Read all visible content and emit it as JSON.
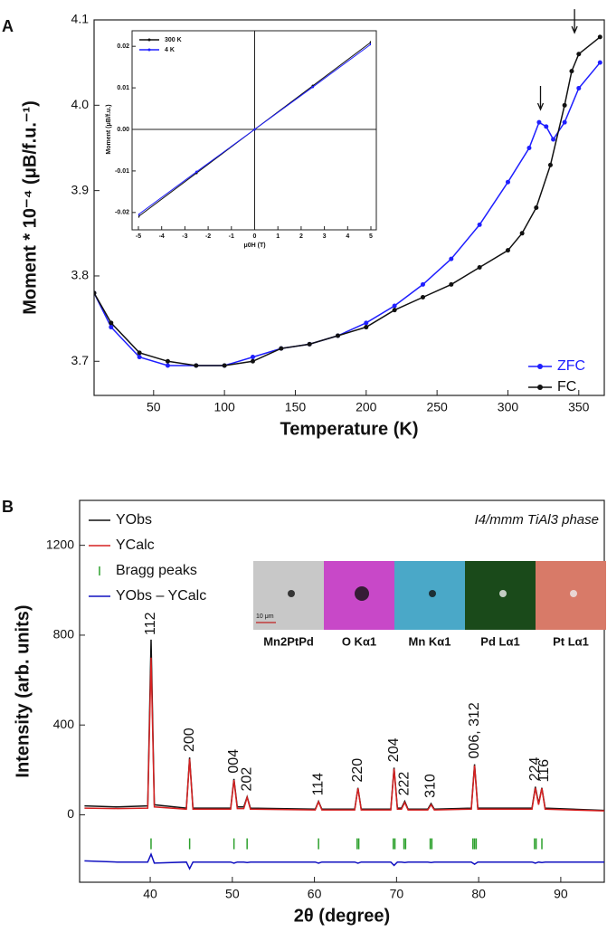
{
  "chart_data": [
    {
      "type": "line",
      "label": "A",
      "xlabel": "Temperature (K)",
      "ylabel": "Moment * 10⁻⁴ (μB/f.u.⁻¹)",
      "xlim": [
        8,
        368
      ],
      "ylim": [
        3.66,
        4.1
      ],
      "xticks": [
        50,
        100,
        150,
        200,
        250,
        300,
        350
      ],
      "yticks": [
        3.7,
        3.8,
        3.9,
        {
          "value": 4,
          "label": "4.0"
        },
        4.1
      ],
      "legend": "lower right",
      "arrows": [
        {
          "x": 323,
          "y": 3.995
        },
        {
          "x": 347,
          "y": 4.085
        }
      ],
      "series": [
        {
          "name": "ZFC",
          "color": "#1f1fff",
          "marker": true,
          "x": [
            8,
            20,
            40,
            60,
            80,
            100,
            120,
            140,
            160,
            180,
            200,
            220,
            240,
            260,
            280,
            300,
            315,
            322,
            327,
            332,
            340,
            350,
            365
          ],
          "values": [
            3.78,
            3.74,
            3.705,
            3.695,
            3.695,
            3.695,
            3.705,
            3.715,
            3.72,
            3.73,
            3.745,
            3.765,
            3.79,
            3.82,
            3.86,
            3.91,
            3.95,
            3.98,
            3.975,
            3.96,
            3.98,
            4.02,
            4.05
          ]
        },
        {
          "name": "FC",
          "color": "#111111",
          "marker": true,
          "x": [
            8,
            20,
            40,
            60,
            80,
            100,
            120,
            140,
            160,
            180,
            200,
            220,
            240,
            260,
            280,
            300,
            310,
            320,
            330,
            340,
            345,
            350,
            365
          ],
          "values": [
            3.78,
            3.745,
            3.71,
            3.7,
            3.695,
            3.695,
            3.7,
            3.715,
            3.72,
            3.73,
            3.74,
            3.76,
            3.775,
            3.79,
            3.81,
            3.83,
            3.85,
            3.88,
            3.93,
            4.0,
            4.04,
            4.06,
            4.08
          ]
        }
      ]
    },
    {
      "type": "line",
      "xlabel": "μ0H (T)",
      "ylabel": "Moment (μB/f.u.)",
      "xlim": [
        -5,
        5
      ],
      "ylim": [
        -0.022,
        0.022
      ],
      "xticks": [
        -5,
        -4,
        -3,
        -2,
        -1,
        0,
        1,
        2,
        3,
        4,
        5
      ],
      "yticks": [
        -0.02,
        -0.01,
        {
          "value": 0,
          "label": "0.00"
        },
        0.01,
        0.02
      ],
      "zero_lines": true,
      "legend": "upper left",
      "x": [
        -5,
        -2.5,
        0,
        2.5,
        5
      ],
      "series": [
        {
          "name": "300 K",
          "color": "#111111",
          "marker": true,
          "values": [
            -0.021,
            -0.0105,
            0,
            0.0105,
            0.021
          ]
        },
        {
          "name": "4 K",
          "color": "#1f1fff",
          "marker": true,
          "values": [
            -0.0205,
            -0.0102,
            0,
            0.0102,
            0.0205
          ]
        }
      ]
    },
    {
      "type": "line",
      "label": "B",
      "xlabel": "2θ (degree)",
      "ylabel": "Intensity (arb. units)",
      "xlim": [
        31.4,
        95.3
      ],
      "ylim": [
        -300,
        1400
      ],
      "xticks": [
        40,
        50,
        60,
        70,
        80,
        90
      ],
      "yticks": [
        0,
        400,
        800,
        1200
      ],
      "legend": "upper left",
      "x": [
        32,
        36,
        39.7,
        40.1,
        40.5,
        44.4,
        44.8,
        45.2,
        49.8,
        50.2,
        50.6,
        51.4,
        51.8,
        52.2,
        60.1,
        60.5,
        60.9,
        64.9,
        65.3,
        65.7,
        69.3,
        69.7,
        70.1,
        70.6,
        71.0,
        71.4,
        73.8,
        74.2,
        74.6,
        79.1,
        79.5,
        79.9,
        86.5,
        86.9,
        87.3,
        87.7,
        88.1,
        95.3
      ],
      "series": [
        {
          "name": "YObs",
          "color": "#111111",
          "values": [
            40,
            35,
            40,
            780,
            45,
            30,
            255,
            30,
            30,
            160,
            35,
            35,
            80,
            30,
            25,
            60,
            25,
            25,
            120,
            25,
            25,
            210,
            30,
            30,
            60,
            25,
            25,
            50,
            25,
            30,
            225,
            30,
            30,
            125,
            50,
            120,
            30,
            20
          ]
        },
        {
          "name": "YCalc",
          "color": "#d62020",
          "values": [
            30,
            28,
            30,
            700,
            35,
            25,
            250,
            25,
            25,
            155,
            28,
            28,
            78,
            25,
            22,
            58,
            22,
            22,
            118,
            22,
            22,
            205,
            25,
            25,
            55,
            22,
            22,
            45,
            22,
            25,
            220,
            25,
            25,
            120,
            45,
            118,
            25,
            18
          ]
        },
        {
          "name": "Bragg peaks",
          "color": "#2ca02c",
          "style": "ticks",
          "x": [
            40.1,
            44.8,
            50.2,
            51.8,
            60.5,
            65.2,
            65.4,
            69.6,
            69.8,
            70.9,
            71.1,
            74.1,
            74.3,
            79.3,
            79.5,
            79.7,
            86.8,
            87.0,
            87.7
          ]
        },
        {
          "name": "YObs – YCalc",
          "color": "#1010c0",
          "values": [
            -205,
            -210,
            -210,
            -175,
            -215,
            -210,
            -240,
            -210,
            -210,
            -215,
            -210,
            -210,
            -212,
            -210,
            -210,
            -215,
            -210,
            -210,
            -215,
            -210,
            -210,
            -225,
            -210,
            -210,
            -212,
            -210,
            -210,
            -212,
            -210,
            -210,
            -220,
            -210,
            -210,
            -215,
            -210,
            -212,
            -210,
            -210
          ]
        }
      ],
      "annotations": [
        {
          "text": "112",
          "x": 40.1,
          "y": 800
        },
        {
          "text": "200",
          "x": 44.8,
          "y": 280
        },
        {
          "text": "004",
          "x": 50.2,
          "y": 185
        },
        {
          "text": "202",
          "x": 51.8,
          "y": 105
        },
        {
          "text": "114",
          "x": 60.5,
          "y": 85
        },
        {
          "text": "220",
          "x": 65.3,
          "y": 145
        },
        {
          "text": "204",
          "x": 69.7,
          "y": 235
        },
        {
          "text": "222",
          "x": 71.0,
          "y": 85
        },
        {
          "text": "310",
          "x": 74.2,
          "y": 75
        },
        {
          "text": "006, 312",
          "x": 79.5,
          "y": 250
        },
        {
          "text": "224",
          "x": 86.9,
          "y": 150
        },
        {
          "text": "116",
          "x": 88.0,
          "y": 145
        }
      ],
      "inset": {
        "title": "I4/mmm TiAl3 phase",
        "scale_bar": "10 μm",
        "panels": [
          "Mn2PtPd",
          "O Kα1",
          "Mn Kα1",
          "Pd Lα1",
          "Pt Lα1"
        ]
      }
    }
  ]
}
